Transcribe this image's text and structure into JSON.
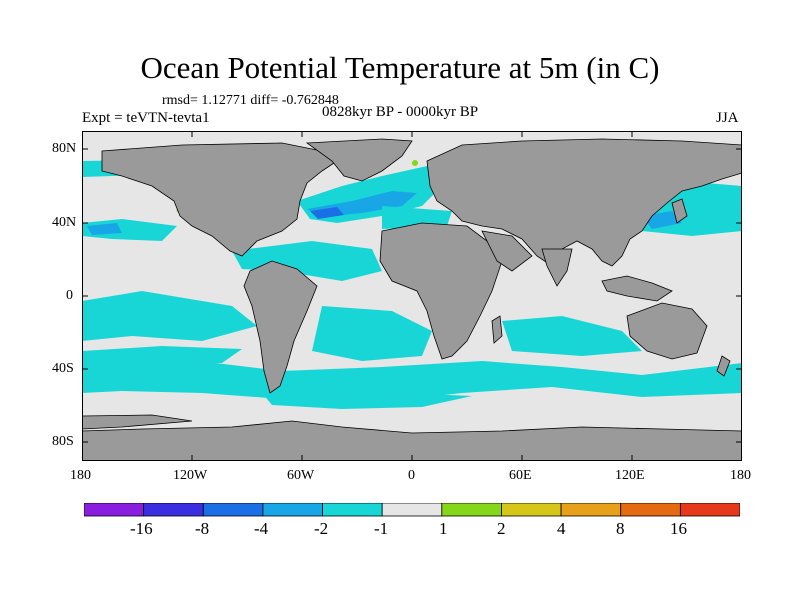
{
  "header": {
    "title": "Ocean Potential Temperature at 5m (in C)",
    "stats": "rmsd= 1.12771 diff= -0.762848",
    "experiment": "Expt = teVTN-tevta1",
    "period": "0828kyr BP - 0000kyr BP",
    "season": "JJA"
  },
  "axes": {
    "y_labels": [
      "80N",
      "40N",
      "0",
      "40S",
      "80S"
    ],
    "x_labels": [
      "180",
      "120W",
      "60W",
      "0",
      "60E",
      "120E",
      "180"
    ]
  },
  "colorbar": {
    "labels": [
      "-16",
      "-8",
      "-4",
      "-2",
      "-1",
      "1",
      "2",
      "4",
      "8",
      "16"
    ],
    "colors": [
      "#8a1ee0",
      "#3b2ee0",
      "#1a6ee6",
      "#19a6e6",
      "#19d6d6",
      "#e6e6e6",
      "#86d61a",
      "#d6c61a",
      "#e6a01a",
      "#e66a10",
      "#e6381a"
    ]
  },
  "colors": {
    "land": "#9a9a9a",
    "neutral": "#e6e6e6",
    "cool": "#19d6d6",
    "cooler": "#19a6e6",
    "coolest": "#1a6ee6",
    "warm": "#86d61a"
  }
}
